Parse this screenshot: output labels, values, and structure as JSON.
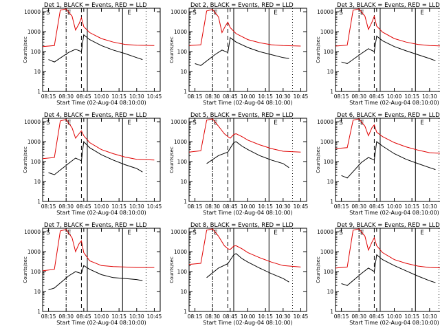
{
  "colors": {
    "events": "#000000",
    "lld": "#e00000",
    "axis": "#000000",
    "background": "#ffffff"
  },
  "xtick_labels": [
    "08:15",
    "08:30",
    "08:45",
    "10:00",
    "10:15",
    "10:30",
    "10:45"
  ],
  "ytick_labels": [
    "1",
    "10",
    "100",
    "1000",
    "10000"
  ],
  "ylabel": "Counts/sec",
  "xlabel": "Start Time (02-Aug-04 08:10:00)",
  "chart_data": [
    {
      "type": "line",
      "title": "Det 1, BLACK = Events, RED = LLD",
      "xlabel": "Start Time (02-Aug-04 08:10:00)",
      "ylabel": "Counts/sec",
      "x_units": "minutes after 08:10:00",
      "xlim": [
        0,
        100
      ],
      "ylim": [
        1,
        15000
      ],
      "yscale": "log",
      "markers": [
        "S",
        "E",
        "E"
      ],
      "series": [
        {
          "name": "Events",
          "x": [
            5,
            10,
            22,
            28,
            33,
            35,
            40,
            50,
            60,
            70,
            80,
            85
          ],
          "y": [
            40,
            30,
            90,
            130,
            100,
            700,
            400,
            200,
            120,
            80,
            50,
            40
          ]
        },
        {
          "name": "LLD",
          "x": [
            0,
            10,
            15,
            20,
            25,
            28,
            31,
            33,
            35,
            40,
            50,
            60,
            70,
            80,
            95
          ],
          "y": [
            180,
            200,
            12000,
            14000,
            6000,
            1200,
            2500,
            5000,
            1800,
            900,
            450,
            300,
            230,
            210,
            200
          ]
        }
      ]
    },
    {
      "type": "line",
      "title": "Det 2, BLACK = Events, RED = LLD",
      "xlabel": "Start Time (02-Aug-04 08:10:00)",
      "ylabel": "Counts/sec",
      "x_units": "minutes after 08:10:00",
      "xlim": [
        0,
        100
      ],
      "ylim": [
        1,
        15000
      ],
      "yscale": "log",
      "markers": [
        "S",
        "E",
        "E"
      ],
      "series": [
        {
          "name": "Events",
          "x": [
            5,
            10,
            22,
            28,
            33,
            35,
            40,
            50,
            60,
            70,
            80,
            85
          ],
          "y": [
            25,
            20,
            70,
            120,
            90,
            500,
            300,
            160,
            100,
            70,
            50,
            45
          ]
        },
        {
          "name": "LLD",
          "x": [
            0,
            10,
            15,
            20,
            25,
            28,
            31,
            33,
            35,
            40,
            50,
            60,
            70,
            80,
            95
          ],
          "y": [
            200,
            220,
            11000,
            13000,
            5500,
            900,
            2000,
            3000,
            1600,
            800,
            400,
            280,
            220,
            200,
            190
          ]
        }
      ]
    },
    {
      "type": "line",
      "title": "Det 3, BLACK = Events, RED = LLD",
      "xlabel": "Start Time (02-Aug-04 08:10:00)",
      "ylabel": "Counts/sec",
      "x_units": "minutes after 08:10:00",
      "xlim": [
        0,
        100
      ],
      "ylim": [
        1,
        15000
      ],
      "yscale": "log",
      "markers": [
        "S",
        "E",
        "E"
      ],
      "series": [
        {
          "name": "Events",
          "x": [
            5,
            10,
            22,
            28,
            33,
            35,
            40,
            50,
            60,
            70,
            80,
            85
          ],
          "y": [
            30,
            25,
            80,
            140,
            100,
            600,
            350,
            180,
            110,
            70,
            45,
            35
          ]
        },
        {
          "name": "LLD",
          "x": [
            0,
            10,
            15,
            20,
            25,
            28,
            31,
            33,
            35,
            40,
            50,
            60,
            70,
            80,
            95
          ],
          "y": [
            190,
            210,
            12000,
            14000,
            6000,
            1300,
            3000,
            6000,
            1900,
            950,
            450,
            300,
            230,
            200,
            190
          ]
        }
      ]
    },
    {
      "type": "line",
      "title": "Det 4, BLACK = Events, RED = LLD",
      "xlabel": "Start Time (02-Aug-04 08:10:00)",
      "ylabel": "Counts/sec",
      "x_units": "minutes after 08:10:00",
      "xlim": [
        0,
        100
      ],
      "ylim": [
        1,
        15000
      ],
      "yscale": "log",
      "markers": [
        "S",
        "E",
        "E"
      ],
      "series": [
        {
          "name": "Events",
          "x": [
            5,
            10,
            22,
            28,
            33,
            35,
            40,
            50,
            60,
            70,
            80,
            85
          ],
          "y": [
            28,
            22,
            80,
            150,
            110,
            1000,
            500,
            220,
            120,
            70,
            45,
            30
          ]
        },
        {
          "name": "LLD",
          "x": [
            0,
            10,
            15,
            20,
            25,
            28,
            31,
            33,
            35,
            40,
            50,
            60,
            70,
            80,
            95
          ],
          "y": [
            140,
            160,
            11000,
            13000,
            5000,
            1500,
            2500,
            3500,
            2000,
            900,
            400,
            250,
            170,
            130,
            120
          ]
        }
      ]
    },
    {
      "type": "line",
      "title": "Det 5, BLACK = Events, RED = LLD",
      "xlabel": "Start Time (02-Aug-04 08:10:00)",
      "ylabel": "Counts/sec",
      "x_units": "minutes after 08:10:00",
      "xlim": [
        0,
        100
      ],
      "ylim": [
        1,
        15000
      ],
      "yscale": "log",
      "markers": [
        "S",
        "E",
        "E"
      ],
      "series": [
        {
          "name": "Events",
          "x": [
            15,
            25,
            33,
            38,
            40,
            45,
            50,
            60,
            70,
            80,
            85
          ],
          "y": [
            80,
            200,
            300,
            900,
            1000,
            600,
            400,
            200,
            120,
            80,
            50
          ]
        },
        {
          "name": "LLD",
          "x": [
            0,
            10,
            15,
            20,
            25,
            30,
            33,
            35,
            38,
            40,
            45,
            50,
            60,
            70,
            80,
            95
          ],
          "y": [
            300,
            350,
            12000,
            14000,
            6000,
            2500,
            1800,
            1500,
            2300,
            2500,
            1800,
            1200,
            700,
            450,
            330,
            300
          ]
        }
      ]
    },
    {
      "type": "line",
      "title": "Det 6, BLACK = Events, RED = LLD",
      "xlabel": "Start Time (02-Aug-04 08:10:00)",
      "ylabel": "Counts/sec",
      "x_units": "minutes after 08:10:00",
      "xlim": [
        0,
        100
      ],
      "ylim": [
        1,
        15000
      ],
      "yscale": "log",
      "markers": [
        "S",
        "E",
        "E"
      ],
      "series": [
        {
          "name": "Events",
          "x": [
            5,
            10,
            22,
            28,
            33,
            35,
            40,
            50,
            60,
            70,
            80,
            85
          ],
          "y": [
            20,
            15,
            90,
            160,
            120,
            1000,
            600,
            250,
            130,
            80,
            50,
            40
          ]
        },
        {
          "name": "LLD",
          "x": [
            0,
            10,
            15,
            20,
            25,
            28,
            31,
            33,
            35,
            40,
            50,
            60,
            70,
            80,
            95
          ],
          "y": [
            450,
            500,
            12000,
            14000,
            6000,
            2000,
            5000,
            7000,
            3000,
            1800,
            900,
            550,
            380,
            280,
            250
          ]
        }
      ]
    },
    {
      "type": "line",
      "title": "Det 7, BLACK = Events, RED = LLD",
      "xlabel": "Start Time (02-Aug-04 08:10:00)",
      "ylabel": "Counts/sec",
      "x_units": "minutes after 08:10:00",
      "xlim": [
        0,
        100
      ],
      "ylim": [
        1,
        15000
      ],
      "yscale": "log",
      "markers": [
        "S",
        "E",
        "E"
      ],
      "series": [
        {
          "name": "Events",
          "x": [
            5,
            10,
            22,
            28,
            33,
            35,
            40,
            50,
            60,
            70,
            80,
            85
          ],
          "y": [
            12,
            15,
            60,
            100,
            80,
            200,
            130,
            70,
            50,
            45,
            40,
            35
          ]
        },
        {
          "name": "LLD",
          "x": [
            0,
            10,
            15,
            20,
            25,
            28,
            31,
            33,
            35,
            40,
            50,
            60,
            70,
            80,
            95
          ],
          "y": [
            110,
            130,
            11000,
            13000,
            5000,
            1000,
            2500,
            3500,
            900,
            350,
            200,
            180,
            170,
            160,
            160
          ]
        }
      ]
    },
    {
      "type": "line",
      "title": "Det 8, BLACK = Events, RED = LLD",
      "xlabel": "Start Time (02-Aug-04 08:10:00)",
      "ylabel": "Counts/sec",
      "x_units": "minutes after 08:10:00",
      "xlim": [
        0,
        100
      ],
      "ylim": [
        1,
        15000
      ],
      "yscale": "log",
      "markers": [
        "S",
        "E",
        "E"
      ],
      "series": [
        {
          "name": "Events",
          "x": [
            15,
            25,
            33,
            38,
            40,
            45,
            50,
            60,
            70,
            80,
            85
          ],
          "y": [
            50,
            150,
            250,
            700,
            800,
            450,
            300,
            150,
            80,
            45,
            30
          ]
        },
        {
          "name": "LLD",
          "x": [
            0,
            10,
            15,
            20,
            25,
            30,
            33,
            35,
            38,
            40,
            45,
            50,
            60,
            70,
            80,
            95
          ],
          "y": [
            230,
            260,
            12000,
            14000,
            6000,
            2000,
            1400,
            1300,
            1900,
            2000,
            1400,
            900,
            500,
            300,
            200,
            170
          ]
        }
      ]
    },
    {
      "type": "line",
      "title": "Det 9, BLACK = Events, RED = LLD",
      "xlabel": "Start Time (02-Aug-04 08:10:00)",
      "ylabel": "Counts/sec",
      "x_units": "minutes after 08:10:00",
      "xlim": [
        0,
        100
      ],
      "ylim": [
        1,
        15000
      ],
      "yscale": "log",
      "markers": [
        "S",
        "E",
        "E"
      ],
      "series": [
        {
          "name": "Events",
          "x": [
            5,
            10,
            22,
            28,
            33,
            35,
            40,
            50,
            60,
            70,
            80,
            85
          ],
          "y": [
            25,
            20,
            80,
            150,
            100,
            700,
            400,
            200,
            110,
            60,
            35,
            28
          ]
        },
        {
          "name": "LLD",
          "x": [
            0,
            10,
            15,
            20,
            25,
            28,
            31,
            33,
            35,
            40,
            50,
            60,
            70,
            80,
            95
          ],
          "y": [
            150,
            170,
            12000,
            14000,
            6000,
            1200,
            3000,
            5000,
            2000,
            900,
            400,
            260,
            190,
            160,
            150
          ]
        }
      ]
    }
  ]
}
